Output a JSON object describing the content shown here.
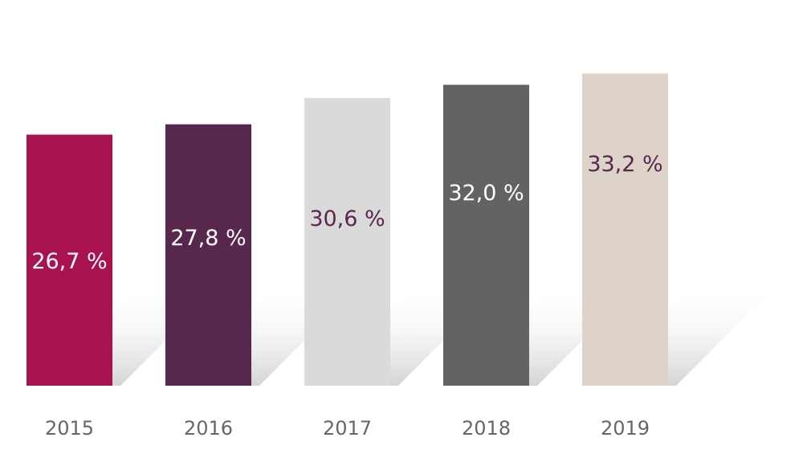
{
  "chart_data": {
    "type": "bar",
    "categories": [
      "2015",
      "2016",
      "2017",
      "2018",
      "2019"
    ],
    "values": [
      26.7,
      27.8,
      30.6,
      32.0,
      33.2
    ],
    "value_labels": [
      "26,7 %",
      "27,8 %",
      "30,6 %",
      "32,0 %",
      "33,2 %"
    ],
    "ylim": [
      0,
      37.6
    ],
    "grid": false,
    "bar_colors": [
      "#a8124f",
      "#58274e",
      "#dadada",
      "#636363",
      "#ddd3c9"
    ],
    "label_colors": [
      "#ffffff",
      "#ffffff",
      "#58274e",
      "#ffffff",
      "#58274e"
    ]
  }
}
